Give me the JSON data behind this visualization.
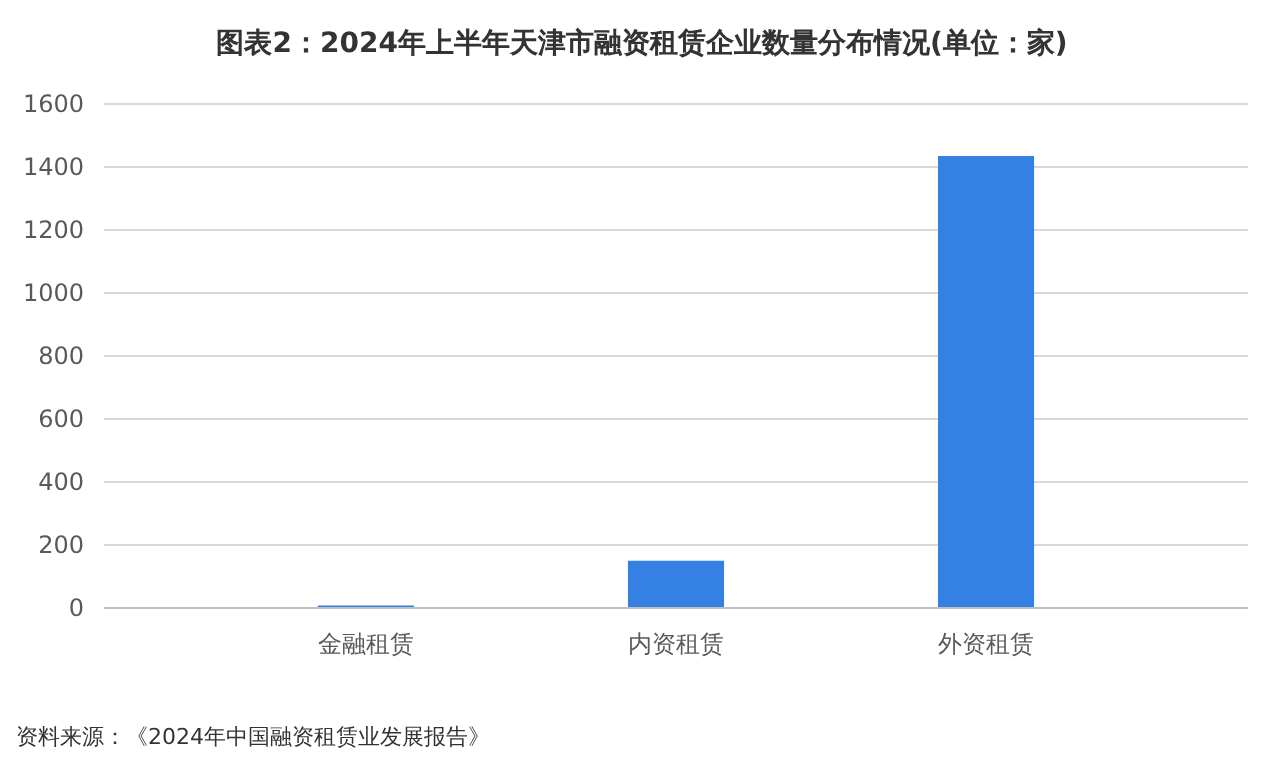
{
  "chart_data": {
    "type": "bar",
    "title": "图表2：2024年上半年天津市融资租赁企业数量分布情况(单位：家)",
    "categories": [
      "金融租赁",
      "内资租赁",
      "外资租赁"
    ],
    "values": [
      8,
      150,
      1435
    ],
    "color": "#3580e3",
    "ylim": [
      0,
      1600
    ],
    "yticks": [
      0,
      200,
      400,
      600,
      800,
      1000,
      1200,
      1400,
      1600
    ],
    "grid": "y",
    "annotations": [
      "资料来源：《2024年中国融资租赁业发展报告》"
    ]
  }
}
